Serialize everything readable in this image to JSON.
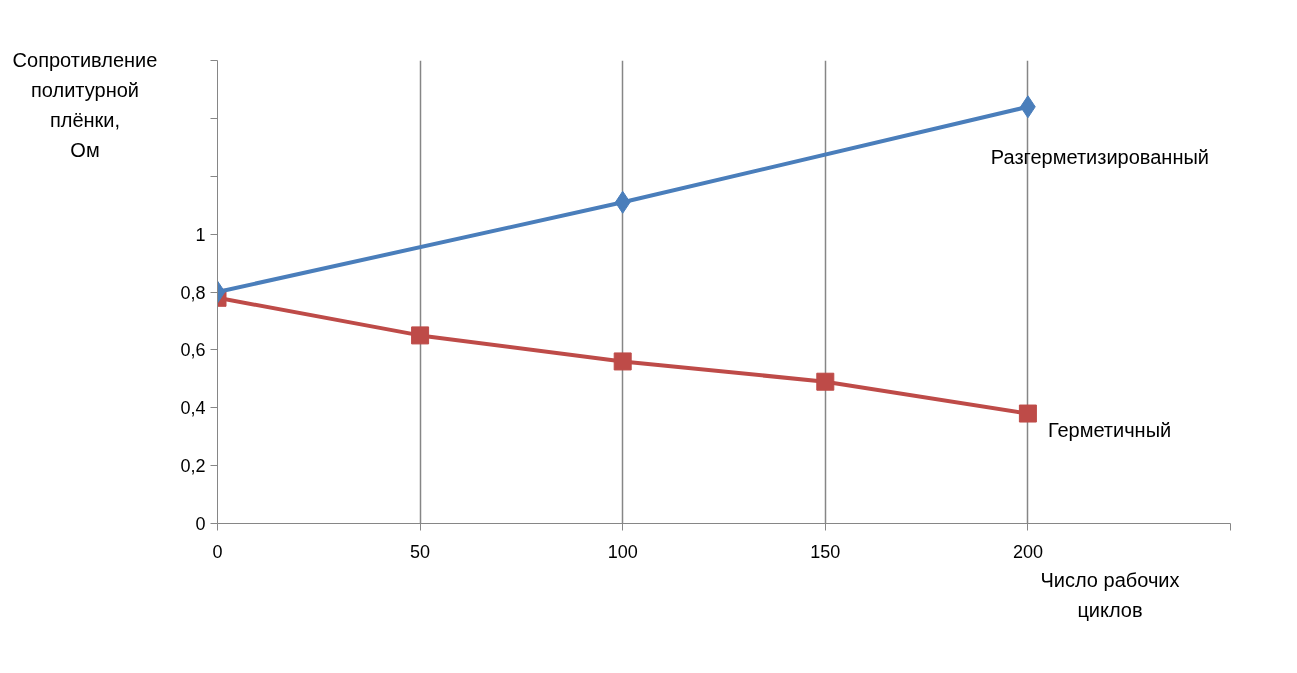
{
  "chart_data": {
    "type": "line",
    "xlabel": "Число рабочих\nциклов",
    "ylabel": "Сопротивление\nполитурной\nплёнки,\nОм",
    "x": [
      0,
      50,
      100,
      150,
      200
    ],
    "series": [
      {
        "name": "Разгерметизированный",
        "color": "#4a7ebb",
        "marker": "diamond",
        "x": [
          0,
          100,
          200
        ],
        "values": [
          0.8,
          1.11,
          1.44
        ]
      },
      {
        "name": "Герметичный",
        "color": "#be4b48",
        "marker": "square",
        "values": [
          0.78,
          0.65,
          0.56,
          0.49,
          0.38
        ]
      }
    ],
    "xlim": [
      0,
      250
    ],
    "xticks": [
      0,
      50,
      100,
      150,
      200,
      {
        "value": 250,
        "label": null
      }
    ],
    "ylim": [
      0,
      1.6
    ],
    "yticks": [
      0,
      {
        "value": 0.2,
        "label": "0,2"
      },
      {
        "value": 0.4,
        "label": "0,4"
      },
      {
        "value": 0.6,
        "label": "0,6"
      },
      {
        "value": 0.8,
        "label": "0,8"
      },
      1,
      {
        "value": 1.2,
        "label": null
      },
      {
        "value": 1.4,
        "label": null
      },
      {
        "value": 1.6,
        "label": null
      }
    ],
    "grid": "x",
    "line_style": "solid"
  }
}
